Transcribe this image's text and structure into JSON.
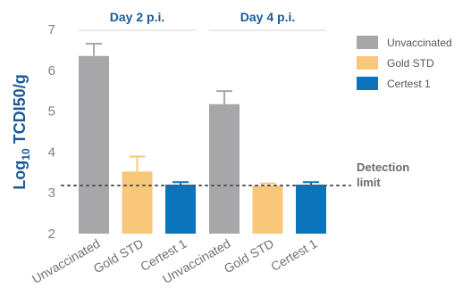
{
  "chart_data": {
    "type": "bar",
    "ylabel": "Log10 TCDI50/g",
    "ylabel_parts": {
      "base": "Log",
      "sub": "10",
      "rest": " TCDI50/g"
    },
    "ylim": [
      2,
      7
    ],
    "yticks": [
      "2",
      "3",
      "4",
      "5",
      "6",
      "7"
    ],
    "groups": [
      {
        "label": "Day 2 p.i.",
        "categories": [
          "Unvaccinated",
          "Gold STD",
          "Certest 1"
        ],
        "values": [
          6.35,
          3.52,
          3.2
        ],
        "errors": [
          0.3,
          0.37,
          0.06
        ]
      },
      {
        "label": "Day 4 p.i.",
        "categories": [
          "Unvaccinated",
          "Gold STD",
          "Certest 1"
        ],
        "values": [
          5.17,
          3.18,
          3.2
        ],
        "errors": [
          0.32,
          0.05,
          0.06
        ]
      }
    ],
    "series": [
      {
        "name": "Unvaccinated",
        "color": "#a7a7a9"
      },
      {
        "name": "Gold STD",
        "color": "#f9c77a"
      },
      {
        "name": "Certest 1",
        "color": "#0b74ba"
      }
    ],
    "reference_line": {
      "value": 3.18,
      "label_line1": "Detection",
      "label_line2": "limit"
    },
    "legend_position": "right",
    "grid": false
  }
}
